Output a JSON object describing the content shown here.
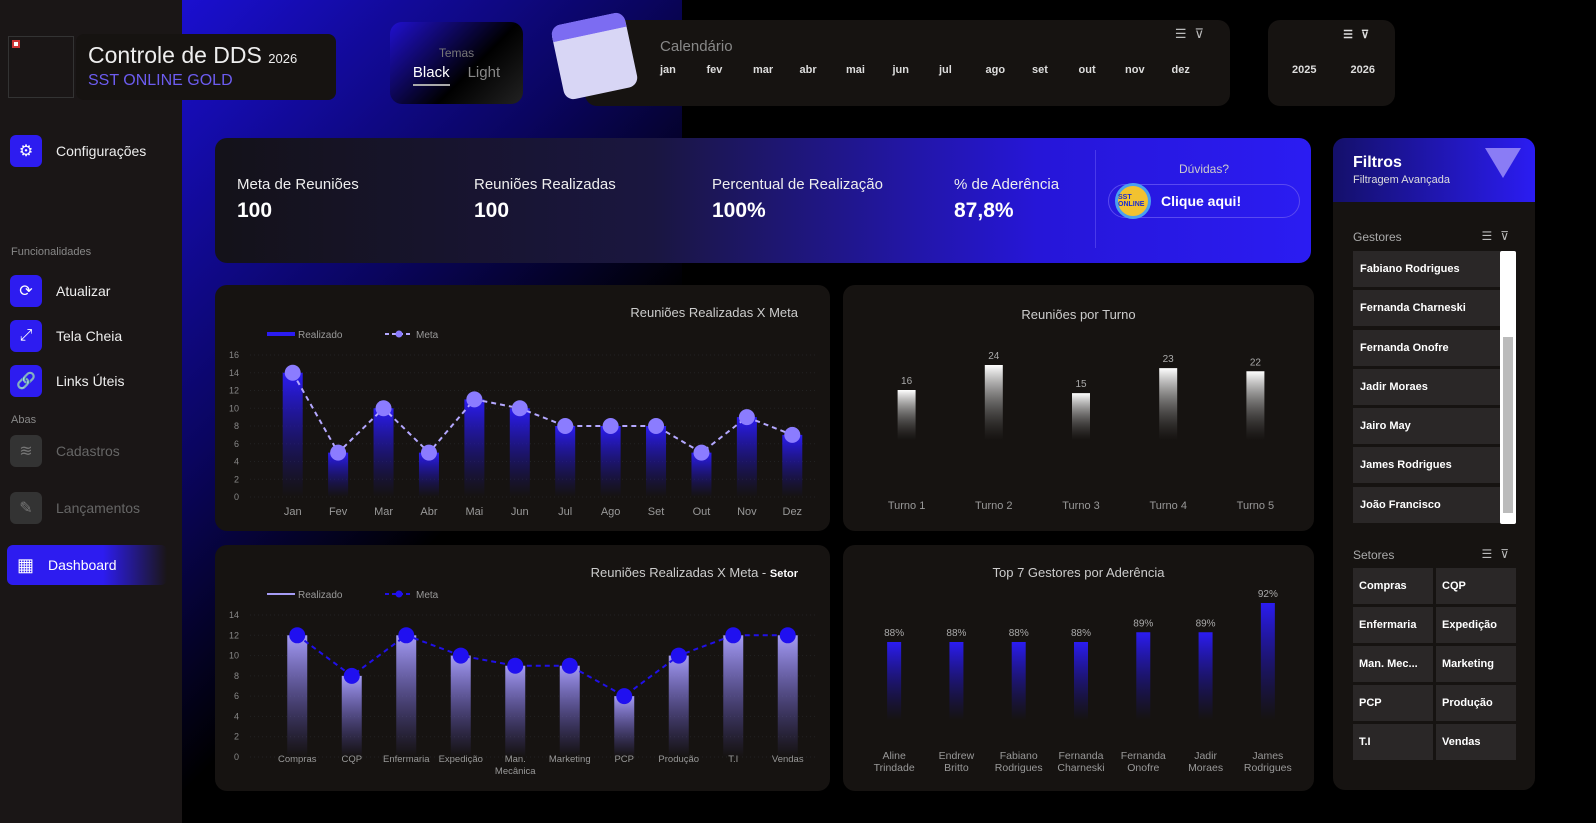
{
  "header": {
    "title": "Controle de DDS",
    "year": "2026",
    "subtitle": "SST ONLINE GOLD",
    "logo_alt": "A imagem vinculada não pode ser exibida."
  },
  "themes": {
    "label": "Temas",
    "options": [
      "Black",
      "Light"
    ],
    "selected": "Black"
  },
  "calendar": {
    "label": "Calendário",
    "months": [
      "jan",
      "fev",
      "mar",
      "abr",
      "mai",
      "jun",
      "jul",
      "ago",
      "set",
      "out",
      "nov",
      "dez"
    ],
    "years": [
      "2025",
      "2026"
    ]
  },
  "sidebar": {
    "config": "Configurações",
    "section_func": "Funcionalidades",
    "atualizar": "Atualizar",
    "tela_cheia": "Tela Cheia",
    "links": "Links Úteis",
    "section_abas": "Abas",
    "cadastros": "Cadastros",
    "lancamentos": "Lançamentos",
    "dashboard": "Dashboard"
  },
  "kpis": [
    {
      "label": "Meta de Reuniões",
      "value": "100"
    },
    {
      "label": "Reuniões Realizadas",
      "value": "100"
    },
    {
      "label": "Percentual de Realização",
      "value": "100%"
    },
    {
      "label": "% de Aderência",
      "value": "87,8%"
    }
  ],
  "help": {
    "question": "Dúvidas?",
    "button": "Clique aqui!",
    "badge": "SST ONLINE"
  },
  "filters": {
    "title": "Filtros",
    "subtitle": "Filtragem Avançada",
    "gestores_label": "Gestores",
    "gestores": [
      "Fabiano Rodrigues",
      "Fernanda Charneski",
      "Fernanda Onofre",
      "Jadir Moraes",
      "Jairo May",
      "James Rodrigues",
      "João Francisco"
    ],
    "setores_label": "Setores",
    "setores": [
      "Compras",
      "CQP",
      "Enfermaria",
      "Expedição",
      "Man. Mec...",
      "Marketing",
      "PCP",
      "Produção",
      "T.I",
      "Vendas"
    ]
  },
  "chart_data": [
    {
      "type": "bar",
      "title": "Reuniões Realizadas X Meta",
      "legend": [
        "Realizado",
        "Meta"
      ],
      "categories": [
        "Jan",
        "Fev",
        "Mar",
        "Abr",
        "Mai",
        "Jun",
        "Jul",
        "Ago",
        "Set",
        "Out",
        "Nov",
        "Dez"
      ],
      "series": [
        {
          "name": "Realizado",
          "values": [
            14,
            5,
            10,
            5,
            11,
            10,
            8,
            8,
            8,
            5,
            9,
            7
          ]
        },
        {
          "name": "Meta",
          "values": [
            14,
            5,
            10,
            5,
            11,
            10,
            8,
            8,
            8,
            5,
            9,
            7
          ]
        }
      ],
      "ylim": [
        0,
        16
      ],
      "yticks": [
        "0",
        "2",
        "4",
        "6",
        "8",
        "10",
        "12",
        "14",
        "16"
      ]
    },
    {
      "type": "bar",
      "title": "Reuniões por Turno",
      "categories": [
        "Turno 1",
        "Turno 2",
        "Turno 3",
        "Turno 4",
        "Turno 5"
      ],
      "values": [
        16,
        24,
        15,
        23,
        22
      ],
      "labels": [
        "16",
        "24",
        "15",
        "23",
        "22"
      ]
    },
    {
      "type": "bar",
      "title": "Reuniões Realizadas X Meta - ",
      "title_bold": "Setor",
      "legend": [
        "Realizado",
        "Meta"
      ],
      "categories": [
        "Compras",
        "CQP",
        "Enfermaria",
        "Expedição",
        "Man. Mecânica",
        "Marketing",
        "PCP",
        "Produção",
        "T.I",
        "Vendas"
      ],
      "series": [
        {
          "name": "Realizado",
          "values": [
            12,
            8,
            12,
            10,
            9,
            9,
            6,
            10,
            12,
            12
          ]
        },
        {
          "name": "Meta",
          "values": [
            12,
            8,
            12,
            10,
            9,
            9,
            6,
            10,
            12,
            12
          ]
        }
      ],
      "ylim": [
        0,
        14
      ],
      "yticks": [
        "0",
        "2",
        "4",
        "6",
        "8",
        "10",
        "12",
        "14"
      ]
    },
    {
      "type": "bar",
      "title": "Top 7 Gestores por Aderência",
      "categories": [
        "Aline Trindade",
        "Endrew Britto",
        "Fabiano Rodrigues",
        "Fernanda Charneski",
        "Fernanda Onofre",
        "Jadir Moraes",
        "James Rodrigues"
      ],
      "values": [
        88,
        88,
        88,
        88,
        89,
        89,
        92
      ],
      "labels": [
        "88%",
        "88%",
        "88%",
        "88%",
        "89%",
        "89%",
        "92%"
      ]
    }
  ]
}
